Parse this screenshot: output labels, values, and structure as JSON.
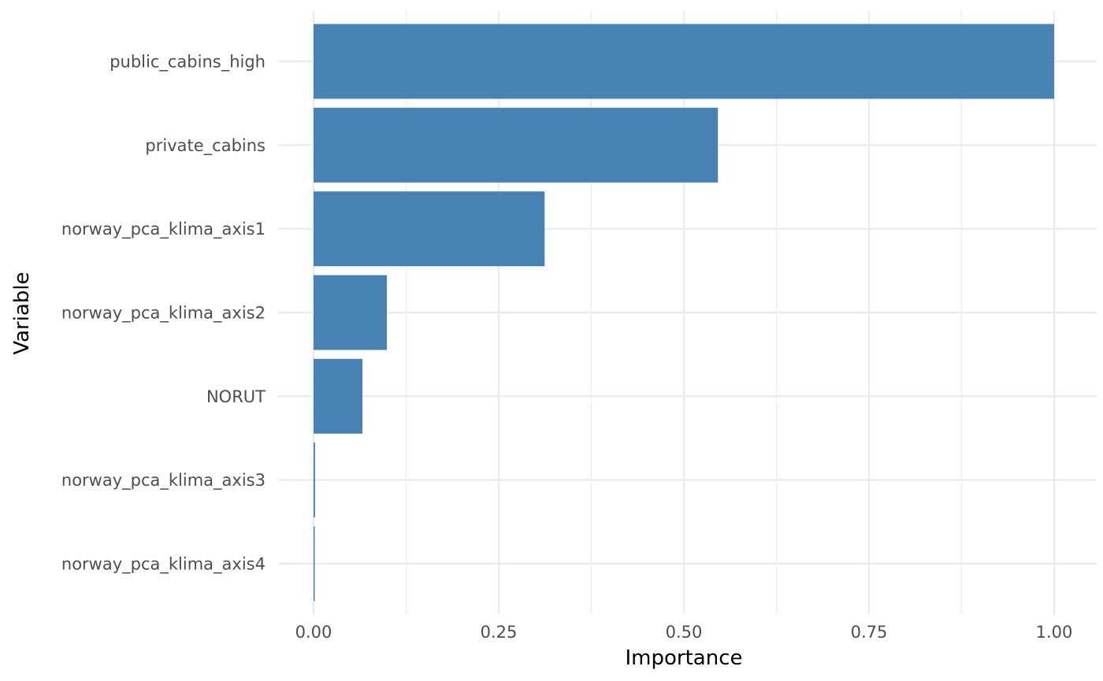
{
  "chart_data": {
    "type": "bar",
    "orientation": "horizontal",
    "title": "",
    "xlabel": "Importance",
    "ylabel": "Variable",
    "categories": [
      "public_cabins_high",
      "private_cabins",
      "norway_pca_klima_axis1",
      "norway_pca_klima_axis2",
      "NORUT",
      "norway_pca_klima_axis3",
      "norway_pca_klima_axis4"
    ],
    "values": [
      1.0,
      0.546,
      0.312,
      0.099,
      0.066,
      0.002,
      0.001
    ],
    "xlim": [
      0,
      1
    ],
    "xticks": [
      0,
      0.25,
      0.5,
      0.75,
      1
    ],
    "xtick_labels": [
      "0.00",
      "0.25",
      "0.50",
      "0.75",
      "1.00"
    ],
    "grid": true,
    "legend": "none",
    "bar_color": "#4682B4",
    "grid_color": "#EBEBEB"
  }
}
